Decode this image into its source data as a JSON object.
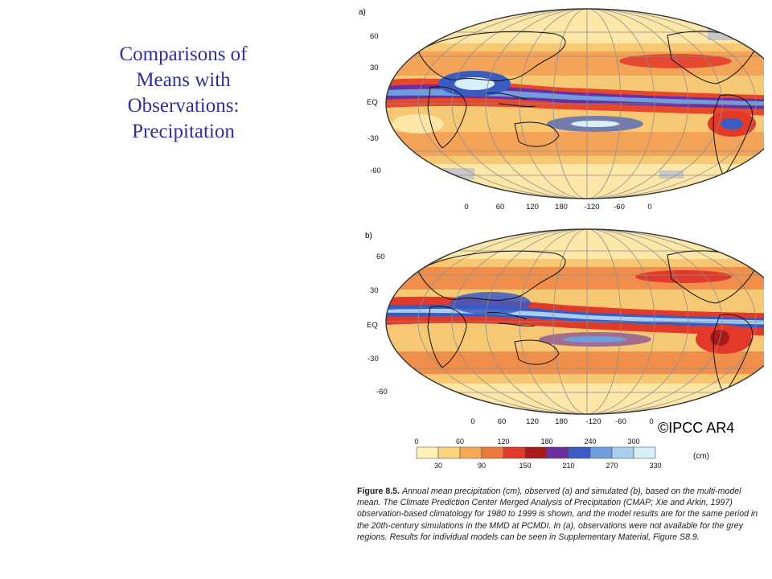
{
  "slide": {
    "title_lines": [
      "Comparisons of",
      "Means with",
      "Observations:",
      "Precipitation"
    ]
  },
  "panels": [
    {
      "label": "a)"
    },
    {
      "label": "b)"
    }
  ],
  "map": {
    "lat_labels": [
      "60",
      "30",
      "EQ",
      "-30",
      "-60"
    ],
    "lon_labels": [
      "0",
      "60",
      "120",
      "180",
      "-120",
      "-60",
      "0"
    ]
  },
  "credit": "©IPCC AR4",
  "colorbar": {
    "upper_ticks": [
      "0",
      "60",
      "120",
      "180",
      "240",
      "300"
    ],
    "lower_ticks": [
      "30",
      "90",
      "150",
      "210",
      "270",
      "330"
    ],
    "unit": "(cm)",
    "colors": [
      "#fff2b8",
      "#fcd47c",
      "#f8a956",
      "#f07a3d",
      "#e23a2a",
      "#a8191c",
      "#6a2fa0",
      "#3a5bc4",
      "#6f9ee0",
      "#a6cff0",
      "#d8eef9"
    ]
  },
  "caption": {
    "label": "Figure 8.5.",
    "text": "Annual mean precipitation (cm), observed (a) and simulated (b), based on the multi-model mean. The Climate Prediction Center Merged Analysis of Precipitation (CMAP; Xie and Arkin, 1997) observation-based climatology for 1980 to 1999 is shown, and the model results are for the same period in the 20th-century simulations in the MMD at PCMDI. In (a), observations were not available for the grey regions. Results for individual models can be seen in Supplementary Material, Figure S8.9."
  }
}
